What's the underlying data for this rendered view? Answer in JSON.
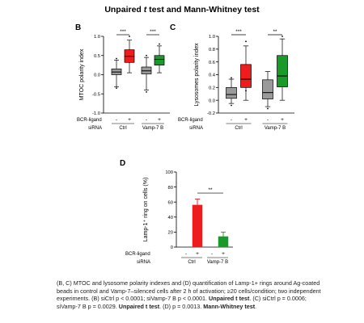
{
  "page": {
    "title_plain": "Unpaired ",
    "title_italic": "t",
    "title_rest": " test and Mann-Whitney test"
  },
  "colors": {
    "ctrl_minus": "#9a9a9a",
    "ctrl_plus": "#ee1c1c",
    "vamp_minus": "#9a9a9a",
    "vamp_plus": "#1a9a2a"
  },
  "chart_data": [
    {
      "panel": "B",
      "type": "box",
      "ylabel": "MTOC polarity index",
      "ylim": [
        -1,
        1
      ],
      "yticks": [
        "-1.0",
        "-0.5",
        "0.0",
        "0.5",
        "1.0"
      ],
      "row_labels": [
        "BCR-ligand",
        "siRNA"
      ],
      "groups": [
        "Ctrl",
        "Vamp-7 B"
      ],
      "ligand": [
        "-",
        "+",
        "-",
        "+"
      ],
      "boxes": [
        {
          "group": "Ctrl",
          "ligand": "-",
          "min": -0.32,
          "q1": 0.0,
          "median": 0.07,
          "q3": 0.15,
          "max": 0.38,
          "outliers": [
            -0.35,
            0.42
          ]
        },
        {
          "group": "Ctrl",
          "ligand": "+",
          "min": 0.05,
          "q1": 0.32,
          "median": 0.48,
          "q3": 0.65,
          "max": 0.9,
          "outliers": [
            1.0
          ]
        },
        {
          "group": "Vamp-7 B",
          "ligand": "-",
          "min": -0.4,
          "q1": 0.02,
          "median": 0.1,
          "q3": 0.2,
          "max": 0.45,
          "outliers": [
            -0.45,
            0.5
          ]
        },
        {
          "group": "Vamp-7 B",
          "ligand": "+",
          "min": 0.05,
          "q1": 0.25,
          "median": 0.4,
          "q3": 0.5,
          "max": 0.75,
          "outliers": [
            0.8
          ]
        }
      ],
      "significance": [
        {
          "label": "***",
          "between": [
            0,
            1
          ]
        },
        {
          "label": "***",
          "between": [
            2,
            3
          ]
        }
      ]
    },
    {
      "panel": "C",
      "type": "box",
      "ylabel": "Lysosomes polarity index",
      "ylim": [
        -0.2,
        1.0
      ],
      "yticks": [
        "-0.2",
        "0.0",
        "0.2",
        "0.4",
        "0.6",
        "0.8",
        "1.0"
      ],
      "row_labels": [
        "BCR-ligand",
        "siRNA"
      ],
      "groups": [
        "Ctrl",
        "Vamp-7 B"
      ],
      "ligand": [
        "-",
        "+",
        "-",
        "+"
      ],
      "boxes": [
        {
          "group": "Ctrl",
          "ligand": "-",
          "min": -0.05,
          "q1": 0.03,
          "median": 0.09,
          "q3": 0.2,
          "max": 0.33,
          "outliers": [
            -0.08,
            0.35
          ]
        },
        {
          "group": "Ctrl",
          "ligand": "+",
          "min": 0.0,
          "q1": 0.2,
          "median": 0.33,
          "q3": 0.56,
          "max": 0.85,
          "outliers": [
            0.15,
            0.92
          ]
        },
        {
          "group": "Vamp-7 B",
          "ligand": "-",
          "min": -0.1,
          "q1": 0.02,
          "median": 0.12,
          "q3": 0.32,
          "max": 0.45,
          "outliers": [
            -0.13
          ]
        },
        {
          "group": "Vamp-7 B",
          "ligand": "+",
          "min": 0.0,
          "q1": 0.21,
          "median": 0.38,
          "q3": 0.7,
          "max": 0.96,
          "outliers": [
            1.0
          ]
        }
      ],
      "significance": [
        {
          "label": "***",
          "between": [
            0,
            1
          ]
        },
        {
          "label": "**",
          "between": [
            2,
            3
          ]
        }
      ]
    },
    {
      "panel": "D",
      "type": "bar",
      "ylabel": "Lamp-1⁺ ring on cells (%)",
      "ylim": [
        0,
        100
      ],
      "yticks": [
        "0",
        "20",
        "40",
        "60",
        "80",
        "100"
      ],
      "row_labels": [
        "BCR-ligand",
        "siRNA"
      ],
      "groups": [
        "Ctrl",
        "Vamp-7 B"
      ],
      "ligand": [
        "-",
        "+",
        "-",
        "+"
      ],
      "values": [
        0,
        56,
        0,
        14
      ],
      "errors": [
        0,
        8,
        0,
        6
      ],
      "significance": [
        {
          "label": "**",
          "between": [
            1,
            3
          ]
        }
      ]
    }
  ],
  "caption": {
    "parts": [
      {
        "text": "(B, C) MTOC and lysosome polarity indexes and (D) quantification of Lamp-1+ rings around Ag-coated beads in control and Vamp-7–silenced cells after 2 h of activation; ≥20 cells/condition; two independent experiments. (B) siCtrl p < 0.0001; siVamp-7 B p < 0.0001. ",
        "bold": false
      },
      {
        "text": "Unpaired t test",
        "bold": true
      },
      {
        "text": ". (C) siCtrl p = 0.0006; siVamp-7 B p = 0.0029. ",
        "bold": false
      },
      {
        "text": "Unpaired t test",
        "bold": true
      },
      {
        "text": ". (D) p = 0.0013. ",
        "bold": false
      },
      {
        "text": "Mann-Whitney test",
        "bold": true
      },
      {
        "text": ".",
        "bold": false
      }
    ]
  }
}
